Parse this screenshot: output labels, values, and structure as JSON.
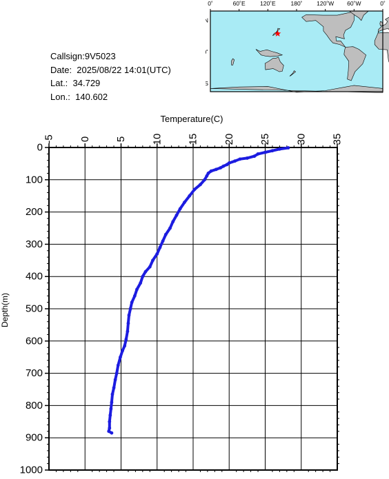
{
  "info": {
    "callsign": "Callsign:9V5023",
    "date": "Date:  2025/08/22 14:01(UTC)",
    "lat": "Lat.:  34.729",
    "lon": "Lon.:  140.602"
  },
  "map": {
    "lon_labels": [
      "0˚",
      "60˚E",
      "120˚E",
      "180˚",
      "120˚W",
      "60˚W",
      "0˚"
    ],
    "lat_labels": [
      "60˚N",
      "0˚",
      "60˚S"
    ],
    "ocean_color": "#a9ebf5",
    "land_color": "#bebebe",
    "marker": {
      "lat": 34.729,
      "lon": 140.602,
      "color": "#ff0000",
      "icon": "star-icon"
    }
  },
  "chart_data": {
    "type": "line",
    "xlabel": "Temperature(C)",
    "ylabel": "Depth(m)",
    "xlim": [
      -5,
      35
    ],
    "ylim": [
      1000,
      0
    ],
    "x_ticks": [
      -5,
      0,
      5,
      10,
      15,
      20,
      25,
      30,
      35
    ],
    "y_ticks": [
      0,
      100,
      200,
      300,
      400,
      500,
      600,
      700,
      800,
      900,
      1000
    ],
    "x_tick_labels": [
      "-5",
      "0",
      "5",
      "10",
      "15",
      "20",
      "25",
      "30",
      "35"
    ],
    "y_tick_labels": [
      "0",
      "100",
      "200",
      "300",
      "400",
      "500",
      "600",
      "700",
      "800",
      "900",
      "1000"
    ],
    "grid": true,
    "series": [
      {
        "color": "#1c1ce0",
        "points": [
          [
            28.2,
            1
          ],
          [
            27.0,
            5
          ],
          [
            26.0,
            10
          ],
          [
            25.0,
            15
          ],
          [
            24.0,
            20
          ],
          [
            23.5,
            27
          ],
          [
            22.5,
            33
          ],
          [
            21.5,
            36
          ],
          [
            20.8,
            42
          ],
          [
            20.0,
            48
          ],
          [
            19.7,
            53
          ],
          [
            19.2,
            58
          ],
          [
            18.8,
            63
          ],
          [
            18.2,
            68
          ],
          [
            17.5,
            73
          ],
          [
            17.1,
            80
          ],
          [
            16.9,
            88
          ],
          [
            16.6,
            100
          ],
          [
            16.0,
            115
          ],
          [
            15.2,
            130
          ],
          [
            14.5,
            150
          ],
          [
            13.8,
            170
          ],
          [
            13.2,
            190
          ],
          [
            12.7,
            210
          ],
          [
            12.2,
            230
          ],
          [
            11.8,
            250
          ],
          [
            11.2,
            270
          ],
          [
            10.8,
            290
          ],
          [
            10.4,
            310
          ],
          [
            10.0,
            330
          ],
          [
            9.4,
            350
          ],
          [
            9.0,
            370
          ],
          [
            8.4,
            385
          ],
          [
            8.0,
            400
          ],
          [
            7.7,
            420
          ],
          [
            7.2,
            440
          ],
          [
            6.9,
            460
          ],
          [
            6.5,
            480
          ],
          [
            6.3,
            500
          ],
          [
            6.1,
            520
          ],
          [
            6.0,
            545
          ],
          [
            5.9,
            570
          ],
          [
            5.7,
            595
          ],
          [
            5.5,
            615
          ],
          [
            5.2,
            630
          ],
          [
            4.9,
            650
          ],
          [
            4.6,
            675
          ],
          [
            4.4,
            700
          ],
          [
            4.2,
            720
          ],
          [
            4.0,
            745
          ],
          [
            3.8,
            765
          ],
          [
            3.7,
            790
          ],
          [
            3.6,
            810
          ],
          [
            3.5,
            830
          ],
          [
            3.4,
            850
          ],
          [
            3.4,
            870
          ],
          [
            3.3,
            880
          ],
          [
            3.7,
            885
          ]
        ]
      }
    ]
  }
}
